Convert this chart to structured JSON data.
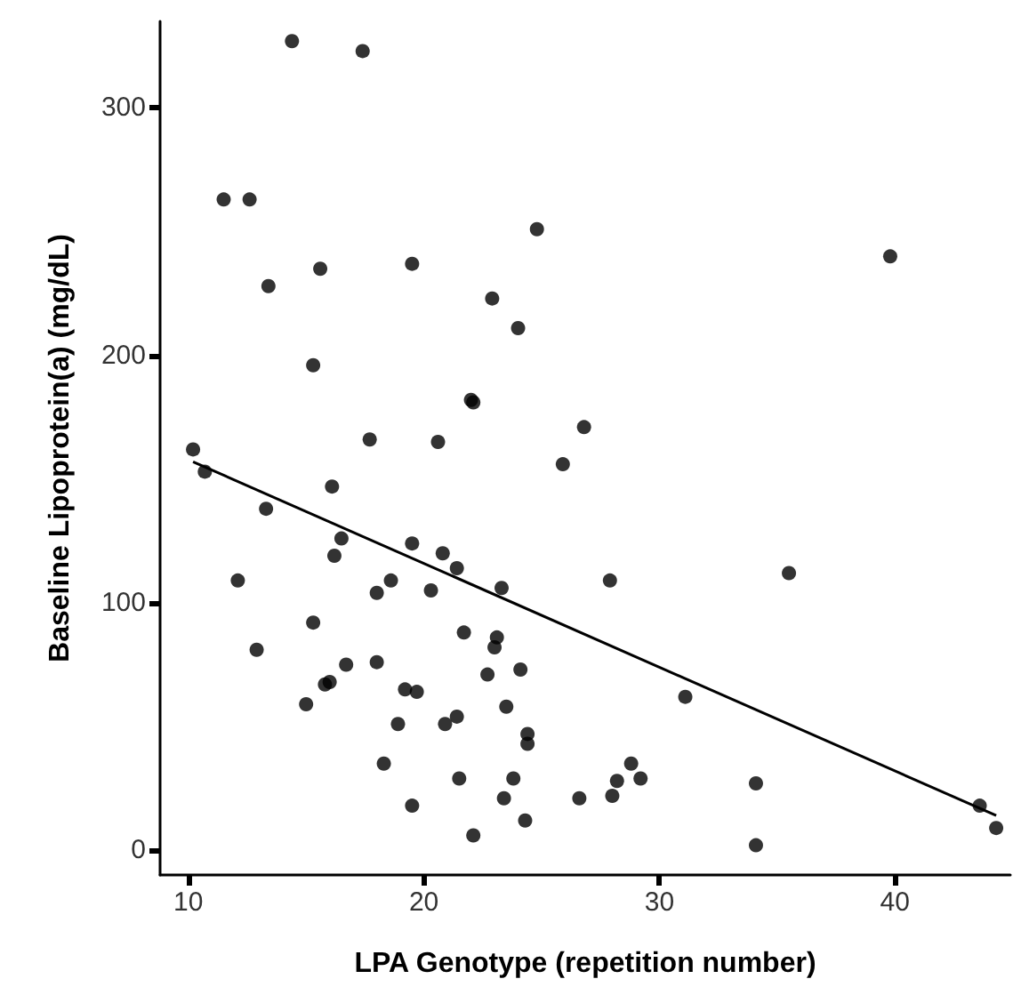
{
  "chart_data": {
    "type": "scatter",
    "xlabel": "LPA Genotype (repetition number)",
    "ylabel": "Baseline Lipoprotein(a) (mg/dL)",
    "xlim": [
      8.8,
      44.9
    ],
    "xticks": [
      10,
      20,
      30,
      40
    ],
    "ylim": [
      -10,
      335
    ],
    "yticks": [
      0,
      100,
      200,
      300
    ],
    "grid": false,
    "marker": "circle",
    "series": [
      {
        "color": "#000000",
        "x": [
          14.4,
          17.4,
          11.5,
          12.6,
          13.4,
          15.6,
          19.5,
          22.9,
          24.0,
          15.3,
          22.0,
          22.1,
          17.7,
          20.6,
          10.2,
          10.7,
          16.1,
          24.8,
          39.8,
          26.8,
          25.9,
          13.3,
          16.5,
          16.2,
          19.5,
          20.8,
          21.4,
          23.3,
          12.1,
          18.0,
          18.6,
          20.3,
          15.3,
          12.9,
          21.7,
          23.1,
          23.0,
          24.1,
          22.7,
          16.7,
          18.0,
          16.0,
          15.8,
          15.0,
          19.2,
          19.7,
          23.5,
          18.9,
          20.9,
          21.4,
          24.4,
          24.4,
          18.3,
          21.5,
          23.8,
          23.4,
          19.5,
          24.3,
          22.1,
          27.9,
          35.5,
          31.1,
          28.8,
          28.2,
          29.2,
          26.6,
          28.0,
          34.1,
          34.1,
          43.6,
          44.3
        ],
        "values": [
          327,
          323,
          263,
          263,
          228,
          235,
          237,
          223,
          211,
          196,
          182,
          181,
          166,
          165,
          162,
          153,
          147,
          251,
          240,
          171,
          156,
          138,
          126,
          119,
          124,
          120,
          114,
          106,
          109,
          104,
          109,
          105,
          92,
          81,
          88,
          86,
          82,
          73,
          71,
          75,
          76,
          68,
          67,
          59,
          65,
          64,
          58,
          51,
          51,
          54,
          47,
          43,
          35,
          29,
          29,
          21,
          18,
          12,
          6,
          109,
          112,
          62,
          35,
          28,
          29,
          21,
          22,
          27,
          2,
          18,
          9
        ]
      },
      {
        "type": "line",
        "color": "#000000",
        "marker": "none",
        "x": [
          10.2,
          44.3
        ],
        "values": [
          157,
          14
        ]
      }
    ]
  }
}
